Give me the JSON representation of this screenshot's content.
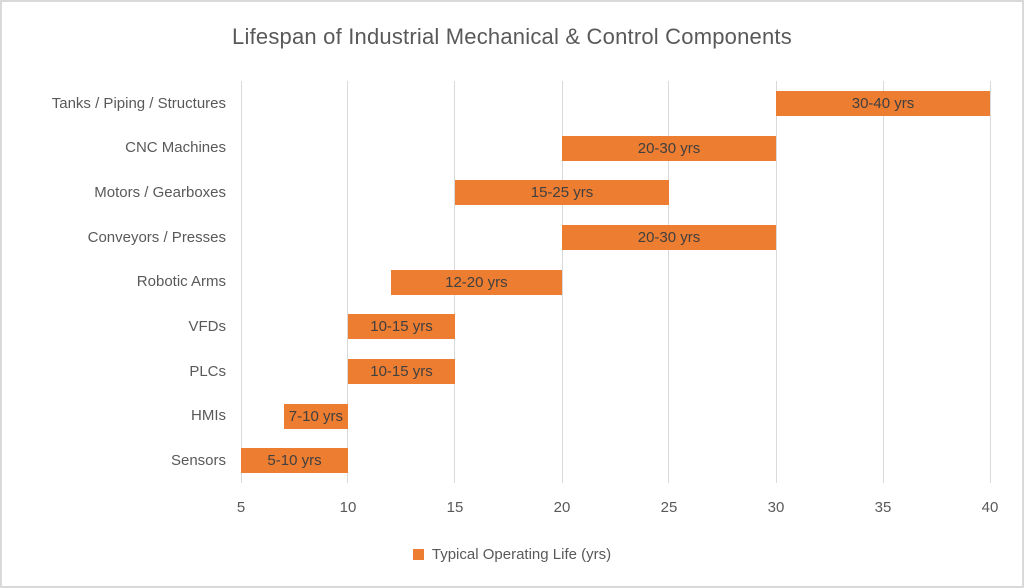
{
  "chart_data": {
    "type": "bar",
    "subtype": "horizontal-range",
    "title": "Lifespan of Industrial Mechanical & Control Components",
    "legend_label": "Typical Operating Life (yrs)",
    "legend_position": "bottom-center",
    "grid": "vertical-only",
    "xlim": [
      5,
      40
    ],
    "x_ticks": [
      5,
      10,
      15,
      20,
      25,
      30,
      35,
      40
    ],
    "categories": [
      "Tanks / Piping / Structures",
      "CNC Machines",
      "Motors / Gearboxes",
      "Conveyors / Presses",
      "Robotic Arms",
      "VFDs",
      "PLCs",
      "HMIs",
      "Sensors"
    ],
    "series": [
      {
        "name": "Typical Operating Life (yrs)",
        "ranges": [
          [
            30,
            40
          ],
          [
            20,
            30
          ],
          [
            15,
            25
          ],
          [
            20,
            30
          ],
          [
            12,
            20
          ],
          [
            10,
            15
          ],
          [
            10,
            15
          ],
          [
            7,
            10
          ],
          [
            5,
            10
          ]
        ],
        "data_labels": [
          "30-40 yrs",
          "20-30 yrs",
          "15-25 yrs",
          "20-30 yrs",
          "12-20 yrs",
          "10-15 yrs",
          "10-15 yrs",
          "7-10 yrs",
          "5-10 yrs"
        ]
      }
    ],
    "colors": {
      "bar": "#ED7D31",
      "title_text": "#595959",
      "axis_text": "#595959",
      "data_label_text": "#404040",
      "gridline": "#D9D9D9",
      "border": "#D9D9D9",
      "background": "#FFFFFF"
    }
  }
}
